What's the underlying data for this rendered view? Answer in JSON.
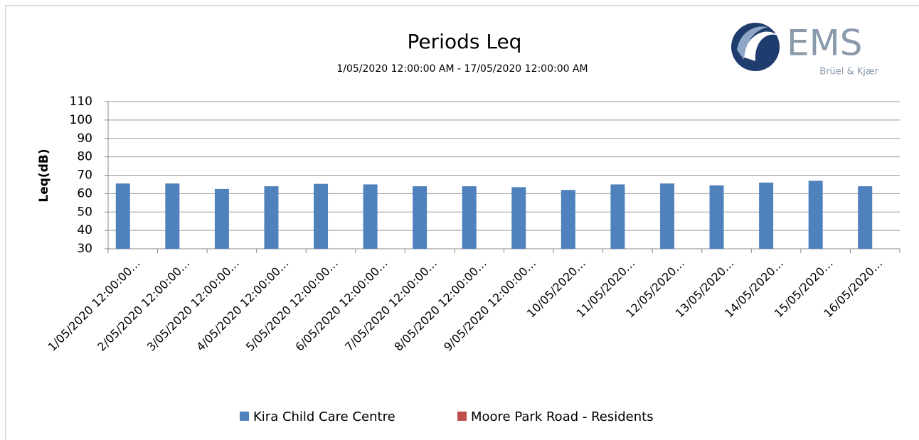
{
  "chart_data": {
    "type": "bar",
    "title": "Periods Leq",
    "subtitle": "1/05/2020 12:00:00 AM - 17/05/2020 12:00:00 AM",
    "y_label": "Leq(dB)",
    "categories": [
      "1/05/2020 12:00:00…",
      "2/05/2020 12:00:00…",
      "3/05/2020 12:00:00…",
      "4/05/2020 12:00:00…",
      "5/05/2020 12:00:00…",
      "6/05/2020 12:00:00…",
      "7/05/2020 12:00:00…",
      "8/05/2020 12:00:00…",
      "9/05/2020 12:00:00…",
      "10/05/2020…",
      "11/05/2020…",
      "12/05/2020…",
      "13/05/2020…",
      "14/05/2020…",
      "15/05/2020…",
      "16/05/2020…"
    ],
    "series": [
      {
        "name": "Kira Child Care Centre",
        "color": "#4f81bd",
        "values": [
          65.5,
          65.5,
          62.5,
          64,
          65.3,
          65,
          64,
          64,
          63.5,
          62,
          65,
          65.5,
          64.5,
          66,
          67,
          64
        ]
      },
      {
        "name": "Moore Park Road - Residents",
        "color": "#c0504d",
        "values": [
          null,
          null,
          null,
          null,
          null,
          null,
          null,
          null,
          null,
          null,
          null,
          null,
          null,
          null,
          null,
          null
        ]
      }
    ],
    "ylim": [
      30,
      110
    ],
    "yticks": [
      30,
      40,
      50,
      60,
      70,
      80,
      90,
      100,
      110
    ],
    "grid": true,
    "legend": "bottom"
  },
  "logo": {
    "name": "EMS",
    "tagline": "Brüel & Kjær"
  }
}
